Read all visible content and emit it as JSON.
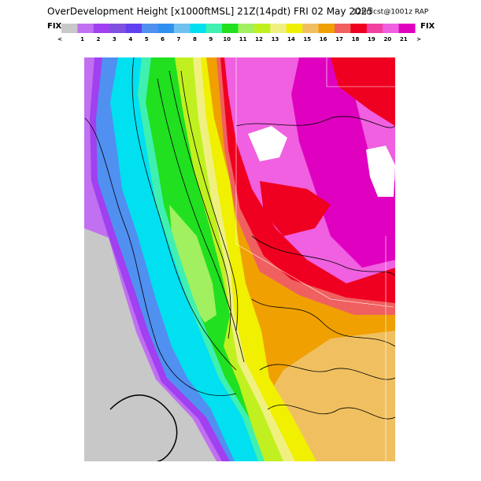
{
  "header": {
    "title": "OverDevelopment Height [x1000ftMSL] 21Z(14pdt) FRI 02 May 2025",
    "subtitle": "12hrFcst@1001z RAP"
  },
  "colorbar": {
    "left_label": "FIX",
    "right_label": "FIX",
    "under": "<",
    "over": ">",
    "labels": [
      "1",
      "2",
      "3",
      "4",
      "5",
      "6",
      "7",
      "8",
      "9",
      "10",
      "11",
      "12",
      "13",
      "14",
      "15",
      "16",
      "17",
      "18",
      "19",
      "20",
      "21"
    ],
    "colors": [
      "#c8c8c8",
      "#c070f0",
      "#a040f0",
      "#8050e0",
      "#6040f0",
      "#5090f0",
      "#3090f0",
      "#70c0f0",
      "#00e0f0",
      "#40f0b0",
      "#20e020",
      "#a0f060",
      "#c0f020",
      "#f0f080",
      "#f0f000",
      "#f0c060",
      "#f0a000",
      "#f06060",
      "#f00020",
      "#f040a0",
      "#f060e0",
      "#e000c0"
    ]
  }
}
